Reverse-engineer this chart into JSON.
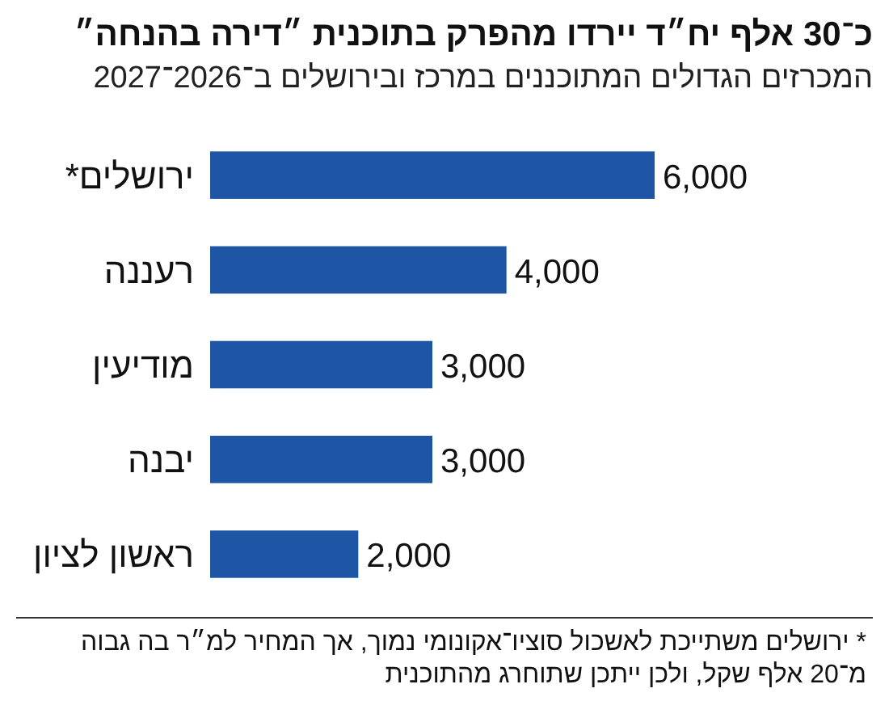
{
  "chart_data": {
    "type": "bar",
    "orientation": "horizontal",
    "title": "כ־30 אלף יח״ד יירדו מהפרק בתוכנית ״דירה בהנחה״",
    "subtitle": "המכרזים הגדולים המתוכננים במרכז ובירושלים ב־2026־2027",
    "categories": [
      "ירושלים*",
      "רעננה",
      "מודיעין",
      "יבנה",
      "ראשון לציון"
    ],
    "values": [
      6000,
      4000,
      3000,
      3000,
      2000
    ],
    "color": "#1f55a5",
    "value_labels": [
      "6,000",
      "4,000",
      "3,000",
      "3,000",
      "2,000"
    ],
    "annotations": [
      "* ירושלים משתייכת לאשכול סוציו־אקונומי נמוך, אך המחיר למ״ר בה גבוה מ־20 אלף שקל, ולכן ייתכן שתוחרג מהתוכנית"
    ]
  }
}
